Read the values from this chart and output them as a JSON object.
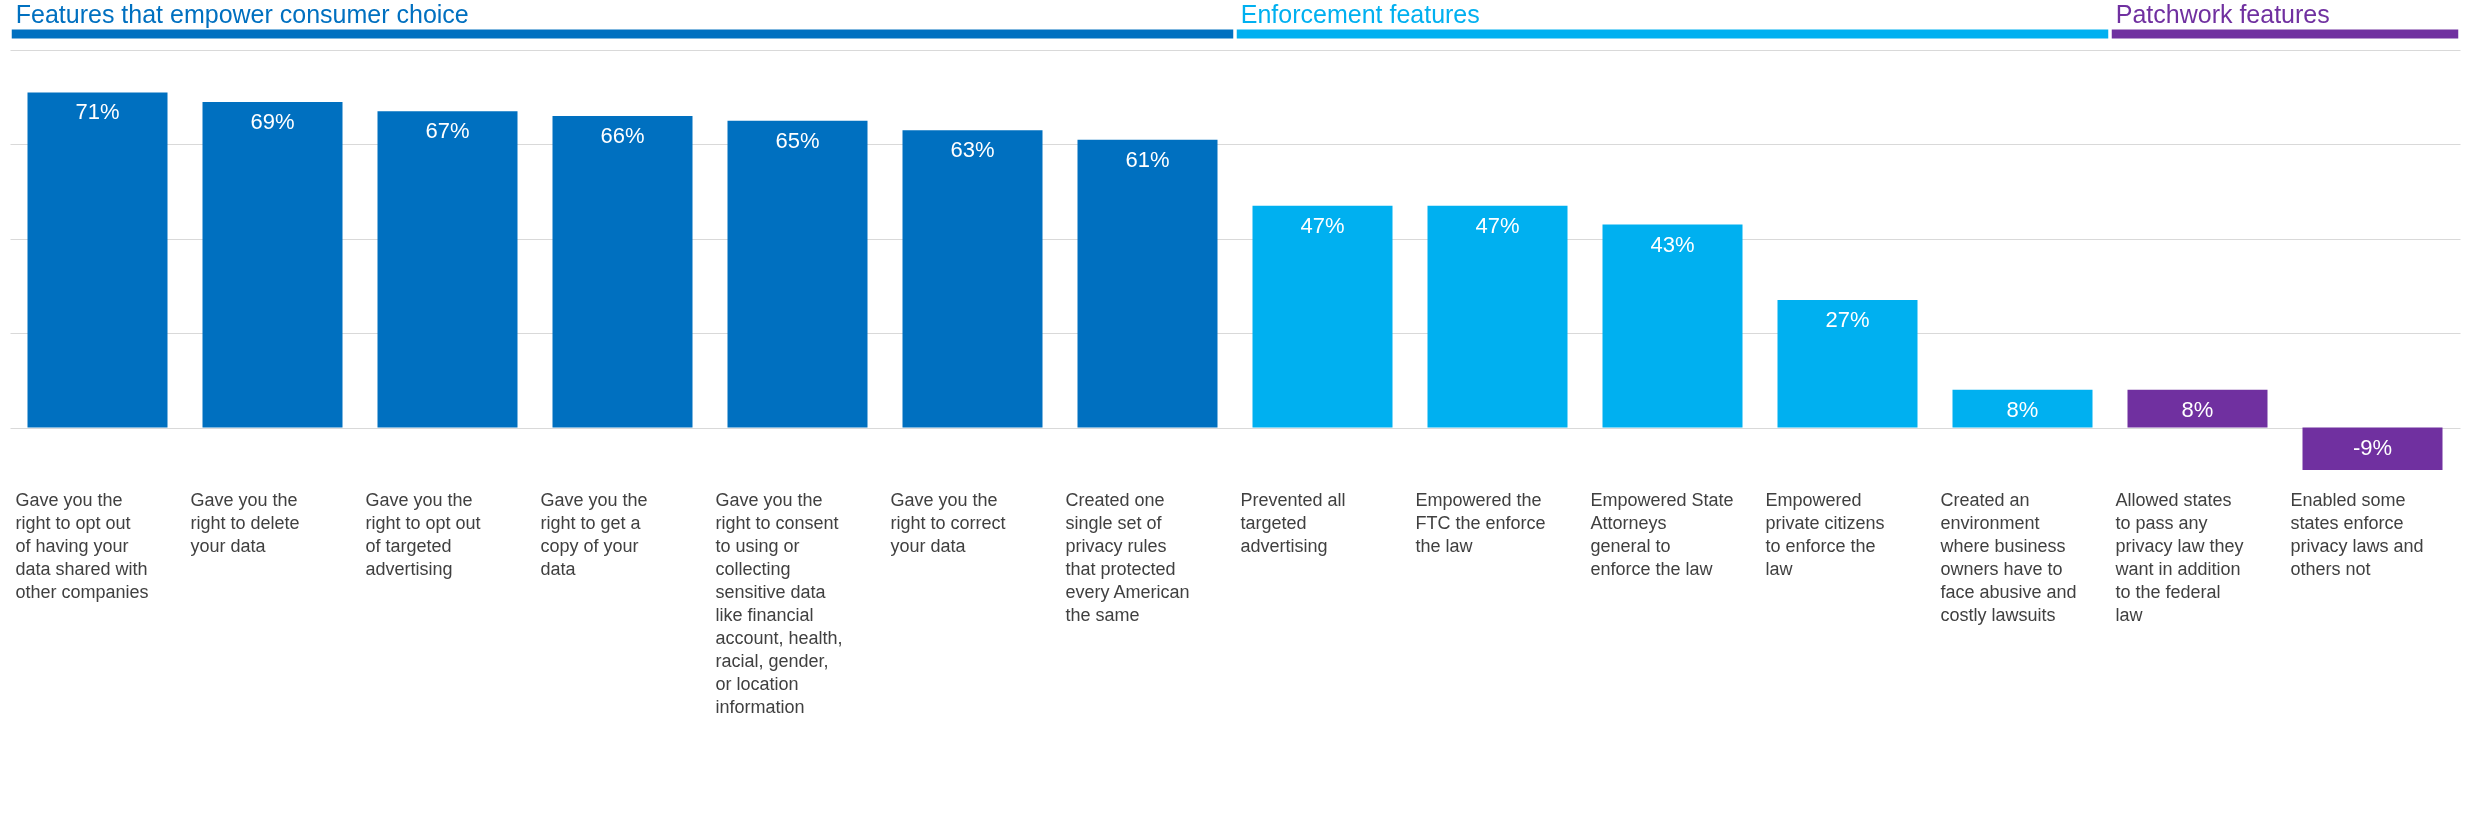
{
  "chart_data": {
    "type": "bar",
    "categories": [
      "Gave you the right to opt out of having your data shared with other companies",
      "Gave you the right to delete your data",
      "Gave you the right to opt out of targeted advertising",
      "Gave you the right to get a copy of your data",
      "Gave you the right to consent to using or collecting sensitive data like financial account, health, racial, gender, or location information",
      "Gave you the right to correct your data",
      "Created one single set of privacy rules that protected every American the same",
      "Prevented all targeted advertising",
      "Empowered the FTC the enforce the law",
      "Empowered State Attorneys general to enforce the law",
      "Empowered private citizens to enforce the law",
      "Created an environment where business owners have to face abusive and costly lawsuits",
      "Allowed states to pass any privacy law they want in addition to the federal law",
      "Enabled some states enforce privacy laws and others not"
    ],
    "series": [
      {
        "name": "Features that empower consumer choice",
        "color": "#0070c0",
        "values": [
          71,
          69,
          67,
          66,
          65,
          63,
          61,
          null,
          null,
          null,
          null,
          null,
          null,
          null
        ],
        "value_labels": [
          "71%",
          "69%",
          "67%",
          "66%",
          "65%",
          "63%",
          "61%",
          null,
          null,
          null,
          null,
          null,
          null,
          null
        ]
      },
      {
        "name": "Enforcement features",
        "color": "#00b0f0",
        "values": [
          null,
          null,
          null,
          null,
          null,
          null,
          null,
          47,
          47,
          43,
          27,
          8,
          null,
          null
        ],
        "value_labels": [
          null,
          null,
          null,
          null,
          null,
          null,
          null,
          "47%",
          "47%",
          "43%",
          "27%",
          "8%",
          null,
          null
        ]
      },
      {
        "name": "Patchwork features",
        "color": "#7030a0",
        "values": [
          null,
          null,
          null,
          null,
          null,
          null,
          null,
          null,
          null,
          null,
          null,
          null,
          8,
          -9
        ],
        "value_labels": [
          null,
          null,
          null,
          null,
          null,
          null,
          null,
          null,
          null,
          null,
          null,
          null,
          "8%",
          "-9%"
        ]
      }
    ],
    "ylim": [
      -9,
      80
    ],
    "yticks": [
      {
        "value": 0,
        "label": null
      },
      {
        "value": 20,
        "label": null
      },
      {
        "value": 40,
        "label": null
      },
      {
        "value": 60,
        "label": null
      },
      {
        "value": 80,
        "label": null
      }
    ],
    "tick_labels": "x",
    "grid": "y"
  }
}
